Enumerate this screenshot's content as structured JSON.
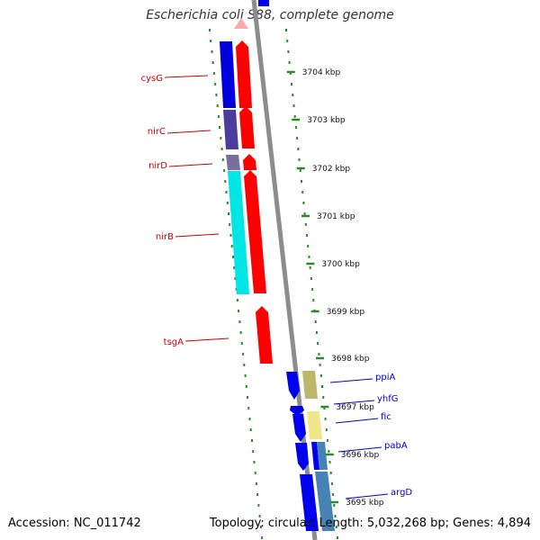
{
  "title": "Escherichia coli S88, complete genome",
  "footer": {
    "accession": "Accession: NC_011742",
    "summary": "Topology: circular; Length: 5,032,268 bp; Genes: 4,894"
  },
  "colors": {
    "forward_gene": "#ff0000",
    "reverse_gene": "#0000ff",
    "left_label": "#cc0000",
    "right_label": "#0000cc",
    "dotted_track": "#2b8a2b",
    "backbone": "#888888"
  },
  "ticks": [
    {
      "label": "3704 kbp"
    },
    {
      "label": "3703 kbp"
    },
    {
      "label": "3702 kbp"
    },
    {
      "label": "3701 kbp"
    },
    {
      "label": "3700 kbp"
    },
    {
      "label": "3699 kbp"
    },
    {
      "label": "3698 kbp"
    },
    {
      "label": "3697 kbp"
    },
    {
      "label": "3696 kbp"
    },
    {
      "label": "3695 kbp"
    }
  ],
  "left_labels": [
    {
      "label": "cysG"
    },
    {
      "label": "nirC"
    },
    {
      "label": "nirD"
    },
    {
      "label": "nirB"
    },
    {
      "label": "tsgA"
    }
  ],
  "right_labels": [
    {
      "label": "ppiA"
    },
    {
      "label": "yhfG"
    },
    {
      "label": "fic"
    },
    {
      "label": "pabA"
    },
    {
      "label": "argD"
    }
  ]
}
